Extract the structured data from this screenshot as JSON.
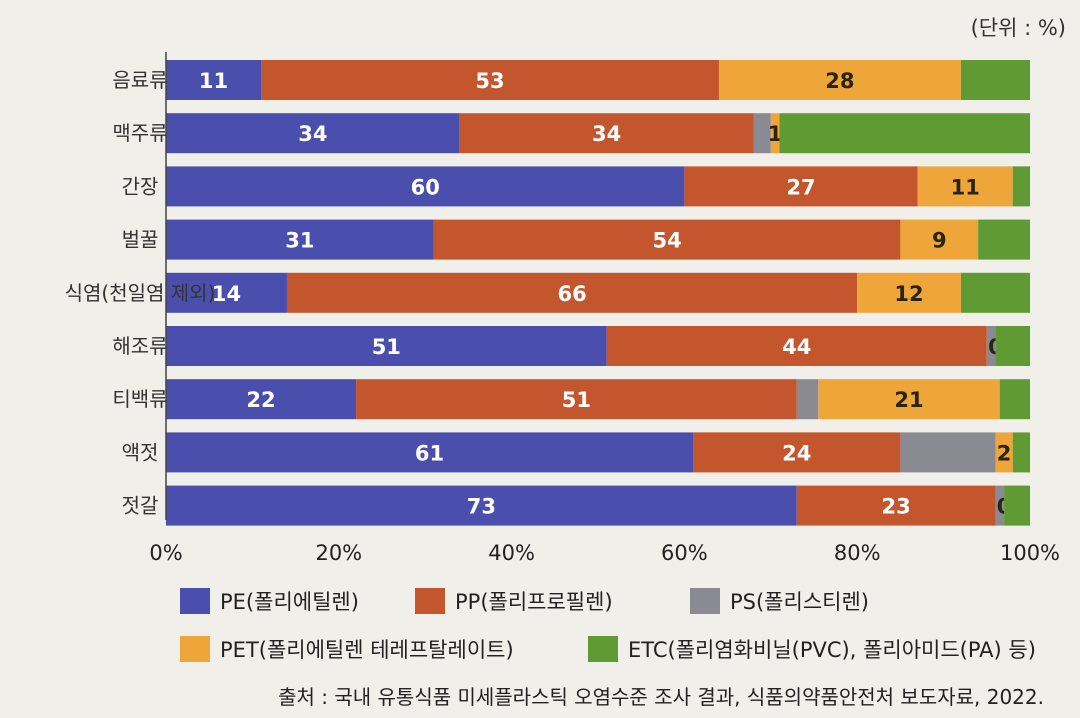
{
  "unit_label": "(단위 : %)",
  "source": "출처 : 국내 유통식품 미세플라스틱 오염수준 조사 결과, 식품의약품안전처 보도자료, 2022.",
  "chart_data": {
    "type": "bar",
    "orientation": "horizontal",
    "stacked": true,
    "categories": [
      "음료류",
      "맥주류",
      "간장",
      "벌꿀",
      "식염(천일염 제외)",
      "해조류",
      "티백류",
      "액젓",
      "젓갈"
    ],
    "series": [
      {
        "name": "PE(폴리에틸렌)",
        "color": "#4a4fae",
        "values": [
          11,
          34,
          60,
          31,
          14,
          51,
          22,
          61,
          73
        ],
        "labels": [
          "11",
          "34",
          "60",
          "31",
          "14",
          "51",
          "22",
          "61",
          "73"
        ]
      },
      {
        "name": "PP(폴리프로필렌)",
        "color": "#c4562e",
        "values": [
          53,
          34,
          27,
          54,
          66,
          44,
          51,
          24,
          23
        ],
        "labels": [
          "53",
          "34",
          "27",
          "54",
          "66",
          "44",
          "51",
          "24",
          "23"
        ]
      },
      {
        "name": "PS(폴리스티렌)",
        "color": "#8a8a92",
        "values": [
          0,
          2,
          0,
          0,
          0,
          1,
          2.5,
          11,
          1
        ],
        "labels": [
          "",
          "",
          "",
          "",
          "",
          "",
          "",
          "",
          ""
        ]
      },
      {
        "name": "PET(폴리에틸렌 테레프탈레이트)",
        "color": "#eea63a",
        "values": [
          28,
          1,
          11,
          9,
          12,
          0,
          21,
          2,
          0
        ],
        "labels": [
          "28",
          "1",
          "11",
          "9",
          "12",
          "0",
          "21",
          "2",
          "0"
        ]
      },
      {
        "name": "ETC(폴리염화비닐(PVC), 폴리아미드(PA) 등)",
        "color": "#5f9a33",
        "values": [
          8,
          29,
          2,
          6,
          8,
          4,
          3.5,
          2,
          3
        ],
        "labels": [
          "",
          "",
          "",
          "",
          "",
          "",
          "",
          "",
          ""
        ]
      }
    ],
    "x_ticks": [
      "0%",
      "20%",
      "40%",
      "60%",
      "80%",
      "100%"
    ],
    "xlim": [
      0,
      100
    ],
    "legend_position": "bottom"
  }
}
